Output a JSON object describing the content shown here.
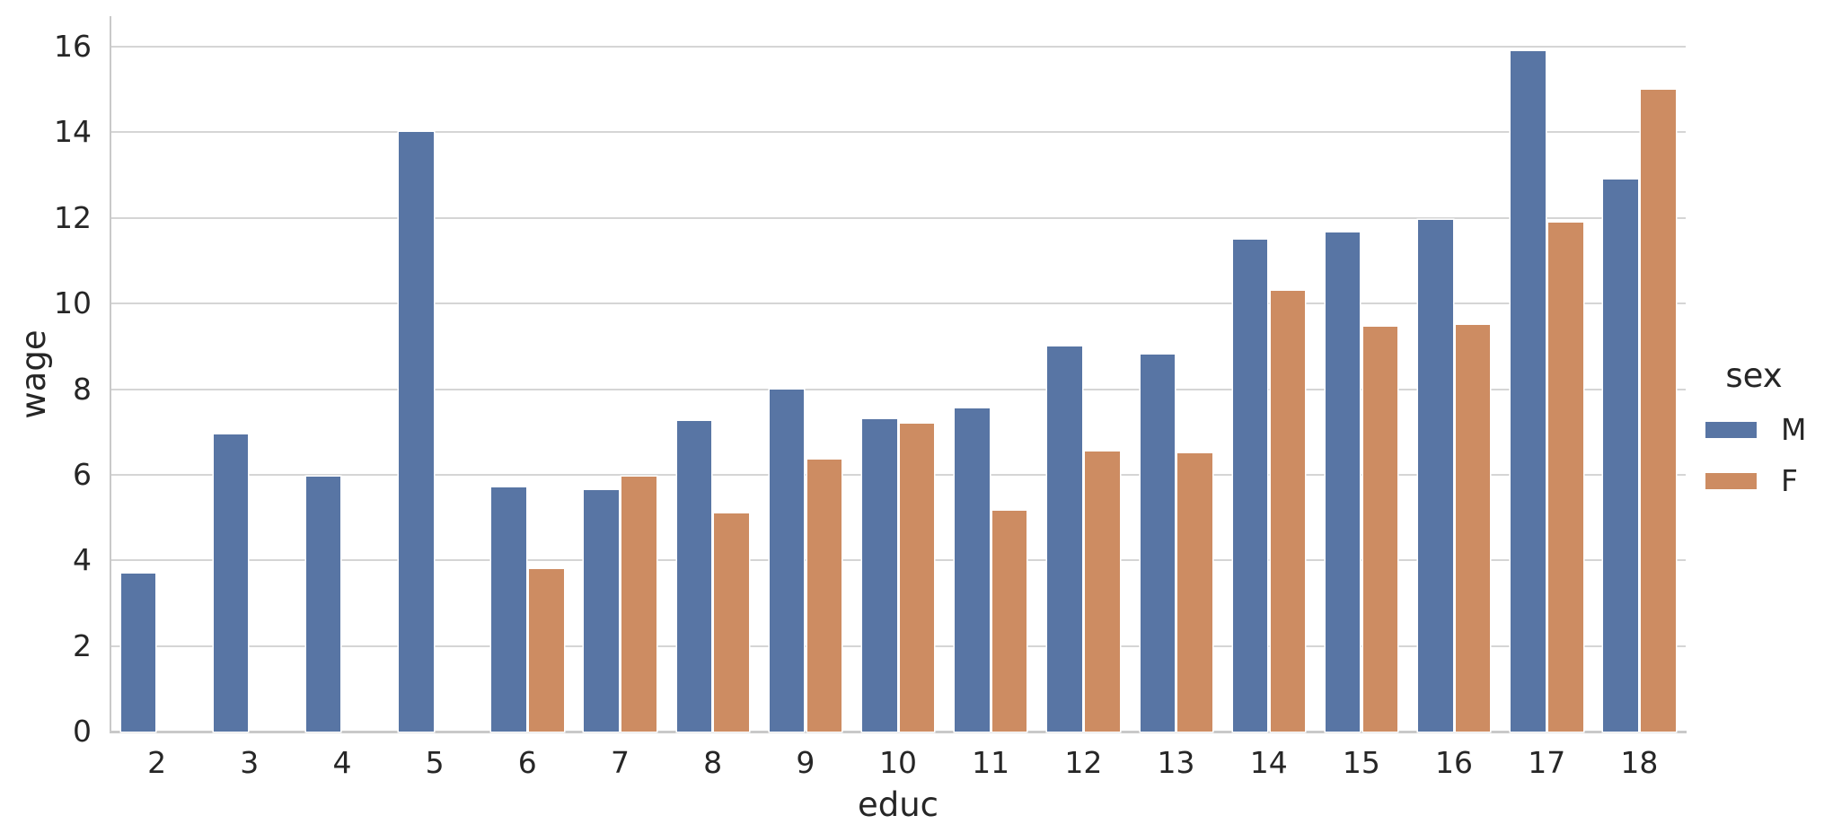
{
  "chart_data": {
    "type": "bar",
    "title": "",
    "xlabel": "educ",
    "ylabel": "wage",
    "categories": [
      2,
      3,
      4,
      5,
      6,
      7,
      8,
      9,
      10,
      11,
      12,
      13,
      14,
      15,
      16,
      17,
      18
    ],
    "series": [
      {
        "name": "M",
        "color": "#5875A4",
        "values": [
          3.7,
          6.95,
          5.95,
          14.0,
          5.7,
          5.65,
          7.25,
          8.0,
          7.3,
          7.55,
          9.0,
          8.8,
          11.5,
          11.65,
          11.95,
          15.9,
          12.9
        ]
      },
      {
        "name": "F",
        "color": "#CD8C62",
        "values": [
          null,
          null,
          null,
          null,
          3.8,
          5.95,
          5.1,
          6.35,
          7.2,
          5.15,
          6.55,
          6.5,
          10.3,
          9.45,
          9.5,
          11.9,
          15.0
        ]
      }
    ],
    "ylim": [
      0,
      16.7
    ],
    "yticks": [
      0,
      2,
      4,
      6,
      8,
      10,
      12,
      14,
      16
    ],
    "grid": true,
    "grid_color": "#d5d5d5",
    "background": "#ffffff",
    "text_color": "#262626",
    "legend": {
      "title": "sex",
      "entries": [
        "M",
        "F"
      ],
      "position": "right"
    }
  }
}
